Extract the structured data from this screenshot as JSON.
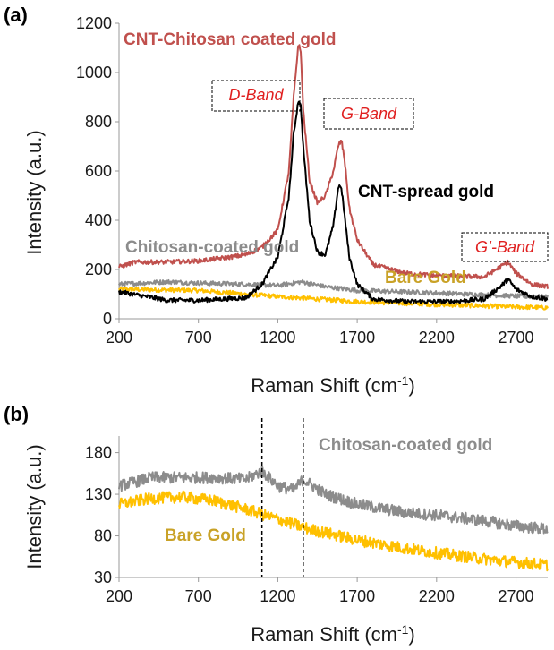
{
  "colors": {
    "cnt_chitosan": "#c0504d",
    "cnt_spread": "#000000",
    "chitosan": "#8c8c8c",
    "bare_gold": "#ffc000",
    "bare_gold_label": "#c9a227",
    "band_text": "#e02020"
  },
  "chart_data": [
    {
      "panel": "(a)",
      "type": "line",
      "xlabel": "Raman Shift (cm",
      "xlabel_sup": "-1",
      "xlabel_end": ")",
      "ylabel": "Intensity (a.u.)",
      "xlim": [
        200,
        2900
      ],
      "ylim": [
        0,
        1200
      ],
      "xticks": [
        "200",
        "700",
        "1200",
        "1700",
        "2200",
        "2700"
      ],
      "yticks": [
        "0",
        "200",
        "400",
        "600",
        "800",
        "1000",
        "1200"
      ],
      "series": [
        {
          "name": "Bare Gold",
          "color_key": "bare_gold",
          "x": [
            200,
            700,
            1200,
            1700,
            2200,
            2700,
            2900
          ],
          "y": [
            120,
            115,
            90,
            70,
            58,
            48,
            45
          ]
        },
        {
          "name": "Chitosan-coated gold",
          "color_key": "chitosan",
          "x": [
            200,
            500,
            700,
            1000,
            1200,
            1350,
            1500,
            1700,
            2200,
            2700,
            2900
          ],
          "y": [
            140,
            150,
            145,
            140,
            135,
            150,
            130,
            115,
            105,
            92,
            88
          ]
        },
        {
          "name": "CNT-spread gold",
          "color_key": "cnt_spread",
          "x": [
            200,
            500,
            700,
            1000,
            1100,
            1200,
            1270,
            1300,
            1330,
            1345,
            1360,
            1400,
            1450,
            1500,
            1550,
            1580,
            1595,
            1610,
            1650,
            1700,
            1800,
            2000,
            2300,
            2500,
            2600,
            2650,
            2700,
            2800,
            2900
          ],
          "y": [
            110,
            75,
            75,
            85,
            140,
            250,
            500,
            750,
            890,
            860,
            700,
            400,
            270,
            260,
            380,
            530,
            545,
            480,
            250,
            140,
            80,
            70,
            70,
            80,
            130,
            160,
            120,
            90,
            80
          ]
        },
        {
          "name": "CNT-Chitosan coated gold",
          "color_key": "cnt_chitosan",
          "x": [
            200,
            300,
            500,
            700,
            900,
            1000,
            1100,
            1200,
            1270,
            1300,
            1330,
            1345,
            1360,
            1400,
            1450,
            1500,
            1550,
            1580,
            1600,
            1620,
            1650,
            1700,
            1800,
            2000,
            2200,
            2500,
            2600,
            2650,
            2700,
            2800,
            2900
          ],
          "y": [
            210,
            230,
            230,
            235,
            250,
            260,
            290,
            360,
            600,
            900,
            1120,
            1080,
            850,
            560,
            470,
            500,
            600,
            700,
            725,
            650,
            450,
            320,
            220,
            185,
            175,
            170,
            210,
            230,
            185,
            140,
            130
          ]
        }
      ],
      "annotations": {
        "cnt_chitosan": "CNT-Chitosan coated gold",
        "cnt_spread": "CNT-spread gold",
        "chitosan": "Chitosan-coated gold",
        "bare_gold": "Bare Gold",
        "d_band": "D-Band",
        "g_band": "G-Band",
        "g_prime_band": "G’-Band"
      }
    },
    {
      "panel": "(b)",
      "type": "line",
      "xlabel": "Raman Shift (cm",
      "xlabel_sup": "-1",
      "xlabel_end": ")",
      "ylabel": "Intensity (a.u.)",
      "xlim": [
        200,
        2900
      ],
      "ylim": [
        30,
        200
      ],
      "xticks": [
        "200",
        "700",
        "1200",
        "1700",
        "2200",
        "2700"
      ],
      "yticks": [
        "30",
        "80",
        "130",
        "180"
      ],
      "vlines": [
        1100,
        1360
      ],
      "series": [
        {
          "name": "Chitosan-coated gold",
          "color_key": "chitosan",
          "x": [
            200,
            400,
            600,
            800,
            1000,
            1100,
            1200,
            1300,
            1360,
            1500,
            1700,
            2000,
            2200,
            2500,
            2700,
            2900
          ],
          "y": [
            140,
            150,
            150,
            150,
            148,
            158,
            140,
            135,
            148,
            130,
            118,
            108,
            105,
            98,
            92,
            88
          ]
        },
        {
          "name": "Bare Gold",
          "color_key": "bare_gold",
          "x": [
            200,
            400,
            600,
            800,
            1000,
            1200,
            1400,
            1700,
            2000,
            2300,
            2600,
            2900
          ],
          "y": [
            118,
            125,
            127,
            122,
            112,
            100,
            88,
            75,
            65,
            57,
            50,
            45
          ]
        }
      ],
      "annotations": {
        "chitosan": "Chitosan-coated gold",
        "bare_gold": "Bare Gold"
      }
    }
  ]
}
